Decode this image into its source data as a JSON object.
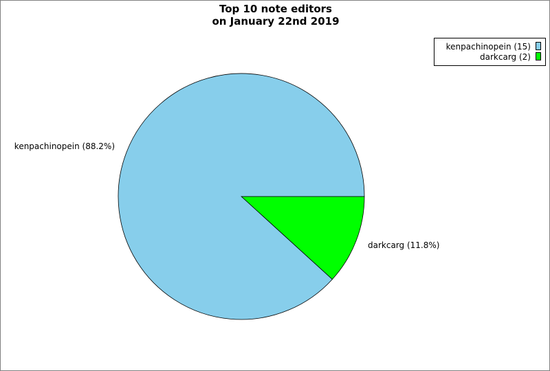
{
  "chart_data": {
    "type": "pie",
    "title": [
      "Top 10 note editors",
      "on January 22nd 2019"
    ],
    "slices": [
      {
        "name": "kenpachinopein",
        "value": 15,
        "percent": 88.2,
        "color": "#87CEEB",
        "label": "kenpachinopein (88.2%)",
        "legend": "kenpachinopein (15)"
      },
      {
        "name": "darkcarg",
        "value": 2,
        "percent": 11.8,
        "color": "#00FF00",
        "label": "darkcarg (11.8%)",
        "legend": "darkcarg (2)"
      }
    ],
    "legend_position": "top-right"
  }
}
